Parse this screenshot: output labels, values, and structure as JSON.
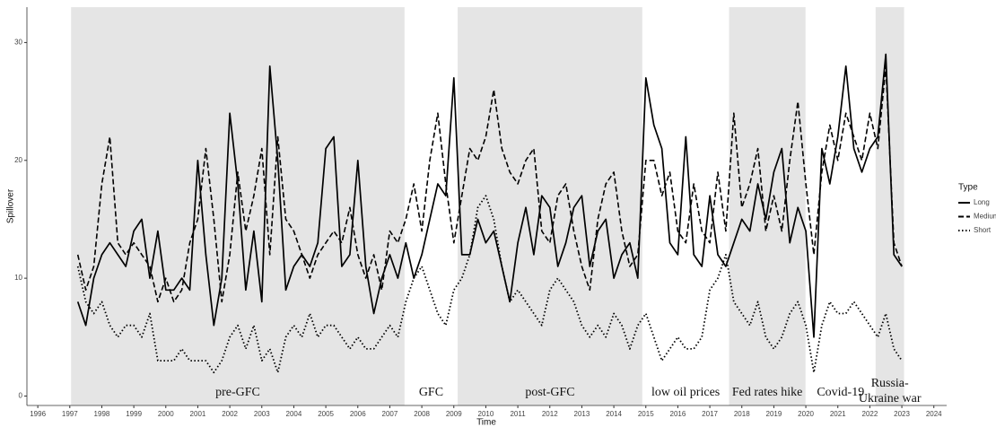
{
  "chart_data": {
    "type": "line",
    "x_label": "Time",
    "y_label": "Spillover",
    "legend_title": "Type",
    "legend_position": "right",
    "xlim": [
      1995.66,
      2024.4
    ],
    "xticks": [
      1996,
      1997,
      1998,
      1999,
      2000,
      2001,
      2002,
      2003,
      2004,
      2005,
      2006,
      2007,
      2008,
      2009,
      2010,
      2011,
      2012,
      2013,
      2014,
      2015,
      2016,
      2017,
      2018,
      2019,
      2020,
      2021,
      2022,
      2023,
      2024
    ],
    "ylim": [
      -0.8,
      33
    ],
    "yticks": [
      0,
      10,
      20,
      30
    ],
    "periods": [
      {
        "label": "pre-GFC",
        "start": 1997.04,
        "end": 2007.46,
        "shaded": true
      },
      {
        "label": "GFC",
        "start": 2007.46,
        "end": 2009.12,
        "shaded": false
      },
      {
        "label": "post-GFC",
        "start": 2009.12,
        "end": 2014.89,
        "shaded": true
      },
      {
        "label": "low oil prices",
        "start": 2014.89,
        "end": 2017.6,
        "shaded": false
      },
      {
        "label": "Fed rates hike",
        "start": 2017.6,
        "end": 2019.99,
        "shaded": true
      },
      {
        "label": "Covid-19",
        "start": 2019.99,
        "end": 2022.18,
        "shaded": false
      },
      {
        "label": [
          "Russia-",
          "Ukraine war"
        ],
        "start": 2022.18,
        "end": 2023.07,
        "shaded": true
      }
    ],
    "x": [
      1997.25,
      1997.5,
      1997.75,
      1998,
      1998.25,
      1998.5,
      1998.75,
      1999,
      1999.25,
      1999.5,
      1999.75,
      2000,
      2000.25,
      2000.5,
      2000.75,
      2001,
      2001.25,
      2001.5,
      2001.75,
      2002,
      2002.25,
      2002.5,
      2002.75,
      2003,
      2003.25,
      2003.5,
      2003.75,
      2004,
      2004.25,
      2004.5,
      2004.75,
      2005,
      2005.25,
      2005.5,
      2005.75,
      2006,
      2006.25,
      2006.5,
      2006.75,
      2007,
      2007.25,
      2007.5,
      2007.75,
      2008,
      2008.25,
      2008.5,
      2008.75,
      2009,
      2009.25,
      2009.5,
      2009.75,
      2010,
      2010.25,
      2010.5,
      2010.75,
      2011,
      2011.25,
      2011.5,
      2011.75,
      2012,
      2012.25,
      2012.5,
      2012.75,
      2013,
      2013.25,
      2013.5,
      2013.75,
      2014,
      2014.25,
      2014.5,
      2014.75,
      2015,
      2015.25,
      2015.5,
      2015.75,
      2016,
      2016.25,
      2016.5,
      2016.75,
      2017,
      2017.25,
      2017.5,
      2017.75,
      2018,
      2018.25,
      2018.5,
      2018.75,
      2019,
      2019.25,
      2019.5,
      2019.75,
      2020,
      2020.25,
      2020.5,
      2020.75,
      2021,
      2021.25,
      2021.5,
      2021.75,
      2022,
      2022.25,
      2022.5,
      2022.75,
      2023
    ],
    "series": [
      {
        "name": "Long",
        "color": "#000000",
        "dash": "solid",
        "values": [
          8,
          6,
          10,
          12,
          13,
          12,
          11,
          14,
          15,
          10,
          14,
          9,
          9,
          10,
          9,
          20,
          12,
          6,
          10,
          24,
          18,
          9,
          14,
          8,
          28,
          20,
          9,
          11,
          12,
          11,
          13,
          21,
          22,
          11,
          12,
          20,
          11,
          7,
          10,
          12,
          10,
          13,
          10,
          12,
          15,
          18,
          17,
          27,
          12,
          12,
          15,
          13,
          14,
          11,
          8,
          13,
          16,
          12,
          17,
          16,
          11,
          13,
          16,
          17,
          11,
          14,
          15,
          10,
          12,
          13,
          10,
          27,
          23,
          21,
          13,
          12,
          22,
          12,
          11,
          17,
          12,
          11,
          13,
          15,
          14,
          18,
          15,
          19,
          21,
          13,
          16,
          14,
          5,
          21,
          18,
          22,
          28,
          21,
          19,
          21,
          22,
          29,
          12,
          11
        ]
      },
      {
        "name": "Medium",
        "color": "#000000",
        "dash": "dashed",
        "values": [
          12,
          9,
          11,
          18,
          22,
          13,
          12,
          13,
          12,
          11,
          8,
          10,
          8,
          9,
          13,
          15,
          21,
          15,
          8,
          12,
          19,
          14,
          17,
          21,
          12,
          22,
          15,
          14,
          12,
          10,
          12,
          13,
          14,
          13,
          16,
          12,
          10,
          12,
          9,
          14,
          13,
          15,
          18,
          14,
          20,
          24,
          18,
          13,
          17,
          21,
          20,
          22,
          26,
          21,
          19,
          18,
          20,
          21,
          14,
          13,
          17,
          18,
          14,
          11,
          9,
          15,
          18,
          19,
          14,
          11,
          12,
          20,
          20,
          17,
          19,
          14,
          13,
          18,
          14,
          13,
          19,
          14,
          24,
          16,
          18,
          21,
          14,
          17,
          14,
          20,
          25,
          18,
          12,
          19,
          23,
          20,
          24,
          22,
          20,
          24,
          21,
          28,
          13,
          11
        ]
      },
      {
        "name": "Short",
        "color": "#000000",
        "dash": "dotted",
        "values": [
          11,
          8,
          7,
          8,
          6,
          5,
          6,
          6,
          5,
          7,
          3,
          3,
          3,
          4,
          3,
          3,
          3,
          2,
          3,
          5,
          6,
          4,
          6,
          3,
          4,
          2,
          5,
          6,
          5,
          7,
          5,
          6,
          6,
          5,
          4,
          5,
          4,
          4,
          5,
          6,
          5,
          8,
          10,
          11,
          9,
          7,
          6,
          9,
          10,
          12,
          16,
          17,
          15,
          11,
          8,
          9,
          8,
          7,
          6,
          9,
          10,
          9,
          8,
          6,
          5,
          6,
          5,
          7,
          6,
          4,
          6,
          7,
          5,
          3,
          4,
          5,
          4,
          4,
          5,
          9,
          10,
          12,
          8,
          7,
          6,
          8,
          5,
          4,
          5,
          7,
          8,
          6,
          2,
          6,
          8,
          7,
          7,
          8,
          7,
          6,
          5,
          7,
          4,
          3
        ]
      }
    ]
  }
}
